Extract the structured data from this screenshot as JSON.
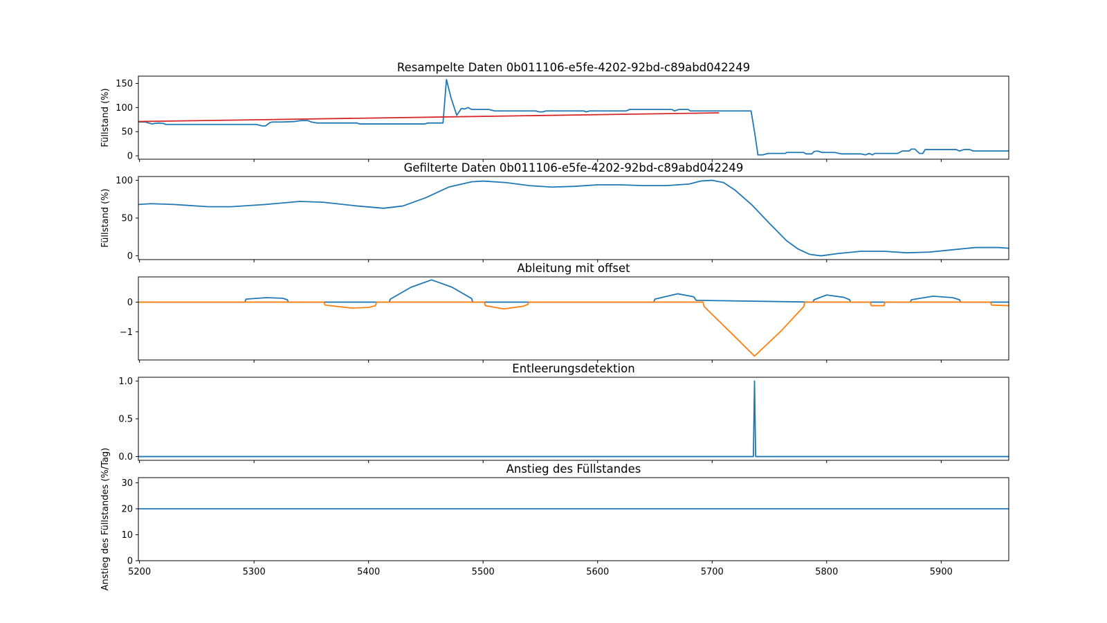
{
  "chart_data": [
    {
      "type": "line",
      "title": "Resampelte Daten 0b011106-e5fe-4202-92bd-c89abd042249",
      "xlabel": "",
      "ylabel": "Füllstand (%)",
      "xlim": [
        5199,
        5959
      ],
      "ylim": [
        -7,
        165
      ],
      "yticks": [
        0,
        50,
        100,
        150
      ],
      "show_xtick_labels": false,
      "grid": false,
      "series": [
        {
          "color": "#1f77b4",
          "x": [
            5199,
            5205,
            5211,
            5213,
            5217,
            5221,
            5223,
            5255,
            5285,
            5302,
            5307,
            5310,
            5314,
            5316,
            5325,
            5335,
            5341,
            5347,
            5350,
            5355,
            5358,
            5390,
            5392,
            5449,
            5452,
            5465,
            5468,
            5472,
            5477,
            5481,
            5484,
            5487,
            5490,
            5494,
            5505,
            5510,
            5546,
            5549,
            5552,
            5555,
            5565,
            5588,
            5590,
            5593,
            5596,
            5625,
            5628,
            5665,
            5667,
            5671,
            5679,
            5681,
            5684,
            5734,
            5737,
            5740,
            5744,
            5749,
            5764,
            5765,
            5768,
            5780,
            5782,
            5787,
            5789,
            5792,
            5796,
            5807,
            5813,
            5830,
            5834,
            5837,
            5840,
            5842,
            5862,
            5866,
            5872,
            5874,
            5877,
            5881,
            5884,
            5886,
            5887,
            5891,
            5913,
            5916,
            5920,
            5925,
            5928,
            5959
          ],
          "y": [
            70,
            70,
            66,
            67,
            68,
            67,
            65,
            65,
            65,
            65,
            62,
            62,
            69,
            70,
            70,
            71,
            73,
            73,
            70,
            68,
            68,
            68,
            66,
            66,
            68,
            68,
            158,
            120,
            84,
            98,
            97,
            100,
            96,
            96,
            96,
            93,
            93,
            91,
            91,
            93,
            93,
            93,
            91,
            93,
            93,
            93,
            96,
            96,
            93,
            96,
            96,
            93,
            93,
            93,
            50,
            2,
            2,
            5,
            5,
            7,
            7,
            7,
            4,
            4,
            9,
            10,
            7,
            7,
            4,
            4,
            2,
            5,
            2,
            5,
            5,
            10,
            10,
            14,
            14,
            5,
            5,
            13,
            13,
            13,
            13,
            10,
            13,
            13,
            10,
            10
          ]
        },
        {
          "color": "#d62728",
          "x": [
            5199,
            5706
          ],
          "y": [
            71,
            89
          ]
        }
      ]
    },
    {
      "type": "line",
      "title": "Gefilterte Daten 0b011106-e5fe-4202-92bd-c89abd042249",
      "xlabel": "",
      "ylabel": "Füllstand (%)",
      "xlim": [
        5199,
        5959
      ],
      "ylim": [
        -5,
        105
      ],
      "yticks": [
        0,
        50,
        100
      ],
      "show_xtick_labels": false,
      "grid": false,
      "series": [
        {
          "color": "#1f77b4",
          "x": [
            5199,
            5210,
            5230,
            5260,
            5280,
            5310,
            5340,
            5360,
            5390,
            5413,
            5430,
            5450,
            5470,
            5490,
            5500,
            5520,
            5540,
            5560,
            5580,
            5600,
            5620,
            5640,
            5660,
            5680,
            5690,
            5700,
            5710,
            5720,
            5735,
            5750,
            5765,
            5775,
            5785,
            5795,
            5810,
            5830,
            5850,
            5870,
            5890,
            5910,
            5930,
            5950,
            5959
          ],
          "y": [
            68,
            69,
            68,
            65,
            65,
            68,
            72,
            71,
            66,
            63,
            66,
            77,
            91,
            98,
            99,
            97,
            93,
            91,
            92,
            94,
            94,
            93,
            93,
            95,
            99,
            100,
            97,
            87,
            67,
            43,
            20,
            9,
            2,
            0,
            3,
            6,
            6,
            4,
            5,
            8,
            11,
            11,
            10
          ]
        }
      ]
    },
    {
      "type": "line",
      "title": "Ableitung mit offset",
      "xlabel": "",
      "ylabel": "",
      "xlim": [
        5199,
        5959
      ],
      "ylim": [
        -1.95,
        0.85
      ],
      "yticks": [
        -1,
        0
      ],
      "show_xtick_labels": false,
      "grid": false,
      "series": [
        {
          "color": "#1f77b4",
          "x": [
            5199,
            5292,
            5293,
            5311,
            5325,
            5329,
            5330,
            5418,
            5419,
            5437,
            5455,
            5473,
            5490,
            5491,
            5649,
            5650,
            5670,
            5684,
            5686,
            5788,
            5789,
            5800,
            5815,
            5820,
            5821,
            5873,
            5874,
            5893,
            5910,
            5916,
            5917,
            5959
          ],
          "y": [
            0,
            0,
            0.1,
            0.15,
            0.13,
            0.08,
            0,
            0,
            0.1,
            0.5,
            0.75,
            0.5,
            0.12,
            0,
            0,
            0.1,
            0.28,
            0.18,
            0.06,
            0,
            0.08,
            0.24,
            0.16,
            0.08,
            0,
            0,
            0.08,
            0.2,
            0.15,
            0.08,
            0,
            0
          ]
        },
        {
          "color": "#ff7f0e",
          "x": [
            5199,
            5361,
            5362,
            5385,
            5400,
            5406,
            5407,
            5501,
            5502,
            5518,
            5535,
            5539,
            5540,
            5692,
            5693,
            5715,
            5737,
            5760,
            5780,
            5781,
            5838,
            5839,
            5850,
            5851,
            5943,
            5944,
            5959
          ],
          "y": [
            0,
            0,
            -0.1,
            -0.2,
            -0.18,
            -0.12,
            0,
            0,
            -0.12,
            -0.23,
            -0.14,
            -0.08,
            0,
            0,
            -0.15,
            -0.98,
            -1.82,
            -0.98,
            -0.15,
            0,
            0,
            -0.12,
            -0.12,
            0,
            0,
            -0.1,
            -0.12
          ]
        }
      ]
    },
    {
      "type": "line",
      "title": "Entleerungsdetektion",
      "xlabel": "",
      "ylabel": "",
      "xlim": [
        5199,
        5959
      ],
      "ylim": [
        -0.05,
        1.05
      ],
      "yticks": [
        0.0,
        0.5,
        1.0
      ],
      "show_xtick_labels": false,
      "grid": false,
      "series": [
        {
          "color": "#1f77b4",
          "x": [
            5199,
            5736,
            5737,
            5738,
            5959
          ],
          "y": [
            0,
            0,
            1,
            0,
            0
          ]
        }
      ]
    },
    {
      "type": "line",
      "title": "Anstieg des Füllstandes",
      "xlabel": "",
      "ylabel": "Anstieg des Füllstandes (%/Tag)",
      "xlim": [
        5199,
        5959
      ],
      "ylim": [
        0,
        32
      ],
      "yticks": [
        0,
        10,
        20,
        30
      ],
      "xticks": [
        5200,
        5300,
        5400,
        5500,
        5600,
        5700,
        5800,
        5900
      ],
      "show_xtick_labels": true,
      "grid": false,
      "series": [
        {
          "color": "#1f77b4",
          "x": [
            5199,
            5959
          ],
          "y": [
            20,
            20
          ]
        }
      ]
    }
  ]
}
